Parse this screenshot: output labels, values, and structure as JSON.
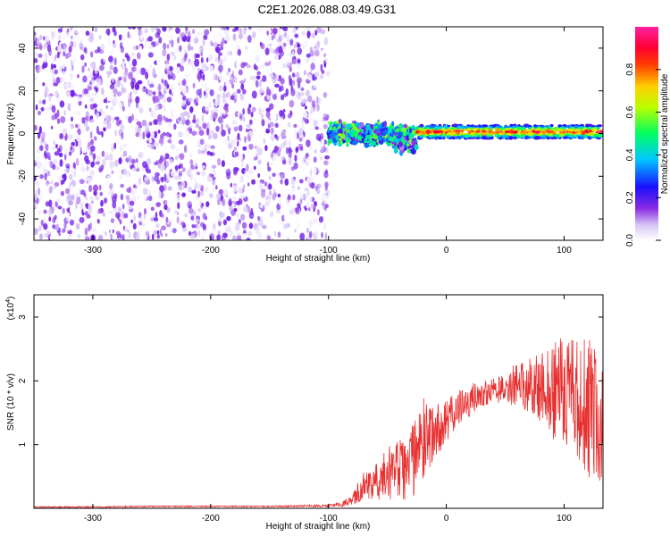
{
  "figure": {
    "title": "C2E1.2026.088.03.49.G31"
  },
  "chart_data": [
    {
      "type": "heatmap",
      "title": "C2E1.2026.088.03.49.G31",
      "xlabel": "Height of straight line (km)",
      "ylabel": "Frequency (Hz)",
      "xlim": [
        -350,
        133
      ],
      "ylim": [
        -50,
        50
      ],
      "xticks": [
        -300,
        -200,
        -100,
        0,
        100
      ],
      "yticks": [
        -40,
        -20,
        0,
        20,
        40
      ],
      "colorbar": {
        "label": "Normalized spectral amplitude",
        "range": [
          0,
          1
        ],
        "ticks": [
          0.0,
          0.2,
          0.4,
          0.6,
          0.8
        ],
        "tick_labels": [
          "0.0",
          "0.2",
          "0.4",
          "0.6",
          "0.8"
        ],
        "colormap": [
          "#ffffff",
          "#8a2be2",
          "#0000ff",
          "#00ffff",
          "#00ff00",
          "#ffff00",
          "#ff0000",
          "#ff00ff"
        ]
      },
      "regions": [
        {
          "x_range": [
            -350,
            -100
          ],
          "y_range": [
            -50,
            50
          ],
          "description": "noise",
          "amplitude_range": [
            0.0,
            0.15
          ]
        },
        {
          "x_range": [
            -100,
            -25
          ],
          "y_center": 0,
          "y_halfwidth": 6,
          "amplitude_range": [
            0.1,
            0.6
          ]
        },
        {
          "x_range": [
            -25,
            133
          ],
          "y_center": 0,
          "y_halfwidth": 3,
          "amplitude_range": [
            0.3,
            1.0
          ]
        }
      ]
    },
    {
      "type": "line",
      "xlabel": "Height of straight line (km)",
      "ylabel": "SNR (10 * v/v)",
      "y_scale_label": "(x10",
      "y_scale_exponent": "4",
      "xlim": [
        -350,
        133
      ],
      "ylim": [
        0,
        3.35
      ],
      "xticks": [
        -300,
        -200,
        -100,
        0,
        100
      ],
      "yticks": [
        1,
        2,
        3
      ],
      "color": "#e83030",
      "series": [
        {
          "x": [
            -350,
            -300,
            -250,
            -200,
            -150,
            -100,
            -90,
            -80,
            -70,
            -60,
            -50,
            -40,
            -30,
            -20,
            -10,
            0,
            10,
            20,
            30,
            40,
            50,
            60,
            70,
            80,
            90,
            100,
            110,
            120,
            130
          ],
          "y": [
            0.02,
            0.02,
            0.03,
            0.03,
            0.03,
            0.04,
            0.06,
            0.12,
            0.35,
            0.5,
            0.55,
            0.6,
            0.7,
            1.05,
            1.2,
            1.35,
            1.55,
            1.7,
            1.8,
            1.85,
            1.9,
            1.95,
            1.9,
            1.9,
            1.85,
            1.8,
            1.75,
            1.55,
            1.4
          ],
          "spread": [
            0.01,
            0.01,
            0.01,
            0.01,
            0.01,
            0.02,
            0.04,
            0.08,
            0.25,
            0.35,
            0.45,
            0.5,
            0.55,
            0.7,
            0.45,
            0.35,
            0.3,
            0.25,
            0.2,
            0.2,
            0.25,
            0.35,
            0.45,
            0.55,
            0.75,
            0.9,
            1.0,
            1.1,
            1.2
          ]
        }
      ]
    }
  ]
}
